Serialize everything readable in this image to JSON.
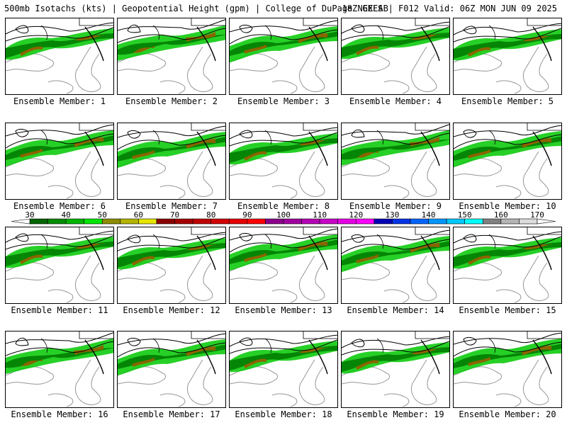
{
  "header": {
    "title_left": "500mb Isotachs (kts) | Geopotential Height (gpm) | College of DuPage NEXLAB",
    "title_right": "18Z GEFS | F012 Valid: 06Z MON JUN 09 2025"
  },
  "members": [
    {
      "label": "Ensemble Member: 1"
    },
    {
      "label": "Ensemble Member: 2"
    },
    {
      "label": "Ensemble Member: 3"
    },
    {
      "label": "Ensemble Member: 4"
    },
    {
      "label": "Ensemble Member: 5"
    },
    {
      "label": "Ensemble Member: 6"
    },
    {
      "label": "Ensemble Member: 7"
    },
    {
      "label": "Ensemble Member: 8"
    },
    {
      "label": "Ensemble Member: 9"
    },
    {
      "label": "Ensemble Member: 10"
    },
    {
      "label": "Ensemble Member: 11"
    },
    {
      "label": "Ensemble Member: 12"
    },
    {
      "label": "Ensemble Member: 13"
    },
    {
      "label": "Ensemble Member: 14"
    },
    {
      "label": "Ensemble Member: 15"
    },
    {
      "label": "Ensemble Member: 16"
    },
    {
      "label": "Ensemble Member: 17"
    },
    {
      "label": "Ensemble Member: 18"
    },
    {
      "label": "Ensemble Member: 19"
    },
    {
      "label": "Ensemble Member: 20"
    }
  ],
  "colorbar": {
    "labels": [
      "30",
      "40",
      "50",
      "60",
      "70",
      "80",
      "90",
      "100",
      "110",
      "120",
      "130",
      "140",
      "150",
      "160",
      "170"
    ],
    "colors": [
      "#006400",
      "#008c00",
      "#00b400",
      "#00e600",
      "#8c8c00",
      "#b4b400",
      "#e6e600",
      "#8b0000",
      "#a50000",
      "#be0000",
      "#d20000",
      "#e60000",
      "#ff0000",
      "#8b008b",
      "#a000a0",
      "#b400b4",
      "#c800c8",
      "#e600e6",
      "#ff00ff",
      "#0000b4",
      "#0032e6",
      "#0064ff",
      "#0096ff",
      "#00c8ff",
      "#00ffff",
      "#808080",
      "#b4b4b4",
      "#dcdcdc"
    ]
  },
  "colors": {
    "jet_green_dark": "#007800",
    "jet_green": "#00c800",
    "jet_core": "#8c6400",
    "height_contour": "#000000",
    "land_outline": "#969696"
  }
}
